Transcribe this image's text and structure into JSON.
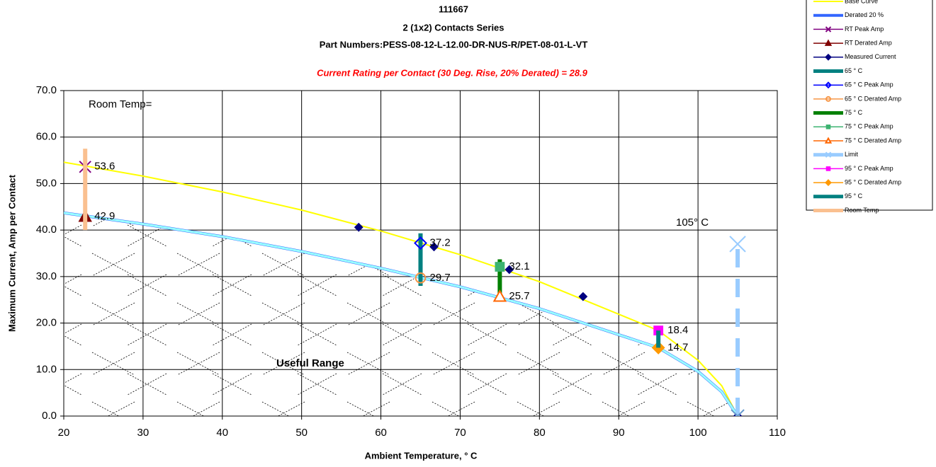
{
  "chart_data": {
    "type": "scatter",
    "title": "111667",
    "subtitle": "2 (1x2) Contacts Series",
    "part_numbers": "Part Numbers:PESS-08-12-L-12.00-DR-NUS-R/PET-08-01-L-VT",
    "rating": "Current Rating per Contact (30 Deg. Rise, 20% Derated)  = 28.9",
    "x_label": "Ambient Temperature,  ° C",
    "y_label": "Maximum Current, Amp per Contact",
    "annotations": [
      "Room Temp=",
      "105° C",
      "Useful Range"
    ],
    "xlim": [
      20,
      110
    ],
    "xticks": [
      20,
      30,
      40,
      50,
      60,
      70,
      80,
      90,
      100,
      110
    ],
    "ylim": [
      0,
      70
    ],
    "yticks": [
      {
        "value": 0,
        "label": "0.0"
      },
      {
        "value": 10,
        "label": "10.0"
      },
      {
        "value": 20,
        "label": "20.0"
      },
      {
        "value": 30,
        "label": "30.0"
      },
      {
        "value": 40,
        "label": "40.0"
      },
      {
        "value": 50,
        "label": "50.0"
      },
      {
        "value": 60,
        "label": "60.0"
      },
      {
        "value": 70,
        "label": "70.0"
      }
    ],
    "grid": true,
    "legend": "right",
    "series": [
      {
        "name": "Base Curve",
        "color": "#ffff00",
        "line_width": 2,
        "marker": "none",
        "x": [
          20,
          30,
          40,
          50,
          60,
          70,
          80,
          90,
          95,
          100,
          103,
          105
        ],
        "values": [
          54.6,
          51.6,
          48.2,
          44.3,
          39.8,
          34.7,
          28.9,
          21.9,
          18.4,
          12.0,
          6.5,
          0
        ]
      },
      {
        "name": "Derated 20 %",
        "color": "#3366ff",
        "line_width": 4,
        "marker": "none",
        "x": [
          20,
          30,
          40,
          50,
          60,
          70,
          80,
          90,
          95,
          100,
          103,
          105
        ],
        "values": [
          43.7,
          41.3,
          38.6,
          35.4,
          31.8,
          27.8,
          23.1,
          17.5,
          14.7,
          9.6,
          5.2,
          0
        ]
      },
      {
        "name": "RT Peak Amp",
        "color": "#800080",
        "line_width": 0,
        "marker": "x",
        "data_labels": true,
        "x": [
          22.7
        ],
        "values": [
          53.6
        ]
      },
      {
        "name": "RT Derated Amp",
        "color": "#800000",
        "line_width": 0,
        "marker": "triangle",
        "data_labels": true,
        "x": [
          22.7
        ],
        "values": [
          42.9
        ]
      },
      {
        "name": "Measured Current",
        "color": "#000080",
        "line_width": 0,
        "marker": "diamond",
        "x": [
          57.2,
          66.7,
          76.2,
          85.5,
          105
        ],
        "values": [
          40.6,
          36.4,
          31.5,
          25.7,
          0
        ]
      },
      {
        "name": "65 ° C",
        "color": "#008080",
        "line_width": 6,
        "marker": "none",
        "x": [
          65,
          65
        ],
        "values": [
          28,
          39.3
        ]
      },
      {
        "name": "65  ° C Peak Amp",
        "color": "#0000ff",
        "line_width": 0,
        "marker": "diamond-open",
        "data_labels": true,
        "x": [
          65
        ],
        "values": [
          37.2
        ]
      },
      {
        "name": "65  ° C Derated Amp",
        "color": "#f79646",
        "line_width": 0,
        "marker": "circle-open",
        "data_labels": true,
        "x": [
          65
        ],
        "values": [
          29.7
        ]
      },
      {
        "name": "75 ° C",
        "color": "#008000",
        "line_width": 6,
        "marker": "none",
        "x": [
          75,
          75
        ],
        "values": [
          25.7,
          33.7
        ]
      },
      {
        "name": "75  ° C Peak Amp",
        "color": "#3cb371",
        "line_width": 0,
        "marker": "square",
        "data_labels": true,
        "x": [
          75
        ],
        "values": [
          32.1
        ]
      },
      {
        "name": "75  ° C Derated Amp",
        "color": "#ff6600",
        "line_width": 0,
        "marker": "triangle-open",
        "data_labels": true,
        "x": [
          75
        ],
        "values": [
          25.7
        ]
      },
      {
        "name": "Limit",
        "color": "#99ccff",
        "line_width": 6,
        "marker": "x",
        "dashed": true,
        "x": [
          105,
          105
        ],
        "values": [
          0,
          37
        ]
      },
      {
        "name": "95  ° C Peak Amp",
        "color": "#ff00ff",
        "line_width": 0,
        "marker": "square",
        "data_labels": true,
        "x": [
          95
        ],
        "values": [
          18.4
        ]
      },
      {
        "name": "95  ° C Derated Amp",
        "color": "#ff9900",
        "line_width": 0,
        "marker": "diamond",
        "data_labels": true,
        "x": [
          95
        ],
        "values": [
          14.7
        ]
      },
      {
        "name": "95 ° C",
        "color": "#008080",
        "line_width": 6,
        "marker": "none",
        "x": [
          95,
          95
        ],
        "values": [
          14.7,
          18.4
        ]
      },
      {
        "name": "Room Temp",
        "color": "#fac090",
        "line_width": 6,
        "marker": "none",
        "x": [
          22.7,
          22.7
        ],
        "values": [
          40,
          57.5
        ]
      }
    ]
  }
}
